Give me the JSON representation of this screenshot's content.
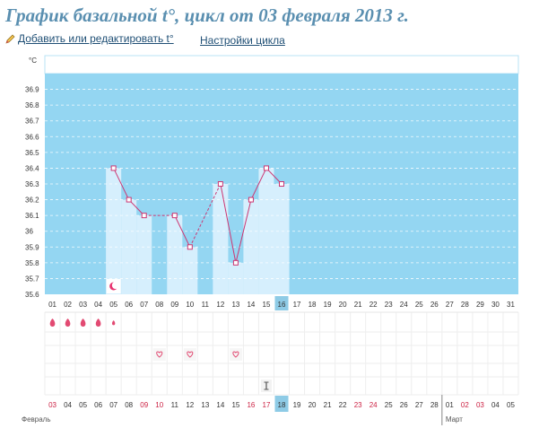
{
  "page": {
    "title": "График базальной t°, цикл от 03 февраля 2013 г.",
    "links": {
      "edit_label": "Добавить или редактировать t°",
      "settings_label": "Настройки цикла"
    }
  },
  "colors": {
    "plot_bg": "#94d6f2",
    "bar_fill": "#d6effd",
    "line": "#cd3672",
    "grid_light": "#eeeeee",
    "red_text": "#cc2244",
    "highlight": "#8ecbe6"
  },
  "icons": {
    "pencil": "pencil-icon",
    "moon": "moon-icon",
    "drop": "drop-icon",
    "heart": "heart-icon",
    "test": "test-icon"
  },
  "chart_data": {
    "type": "line",
    "unit_label": "°C",
    "y_ticks": [
      "35.6",
      "35.7",
      "35.8",
      "35.9",
      "36",
      "36.1",
      "36.2",
      "36.3",
      "36.4",
      "36.5",
      "36.6",
      "36.7",
      "36.8",
      "36.9"
    ],
    "ylim": [
      35.6,
      37.0
    ],
    "cycle_days": [
      "01",
      "02",
      "03",
      "04",
      "05",
      "06",
      "07",
      "08",
      "09",
      "10",
      "11",
      "12",
      "13",
      "14",
      "15",
      "16",
      "17",
      "18",
      "19",
      "20",
      "21",
      "22",
      "23",
      "24",
      "25",
      "26",
      "27",
      "28",
      "29",
      "30",
      "31"
    ],
    "current_day": 16,
    "points": [
      {
        "day": 5,
        "temp": 36.4
      },
      {
        "day": 6,
        "temp": 36.2
      },
      {
        "day": 7,
        "temp": 36.1
      },
      {
        "day": 9,
        "temp": 36.1
      },
      {
        "day": 10,
        "temp": 35.9
      },
      {
        "day": 12,
        "temp": 36.3
      },
      {
        "day": 13,
        "temp": 35.8
      },
      {
        "day": 14,
        "temp": 36.2
      },
      {
        "day": 15,
        "temp": 36.4
      },
      {
        "day": 16,
        "temp": 36.3
      }
    ],
    "gaps": [
      [
        7,
        9
      ],
      [
        10,
        12
      ]
    ],
    "moon_day": 5,
    "drops": [
      {
        "day": 1,
        "size": 1
      },
      {
        "day": 2,
        "size": 1
      },
      {
        "day": 3,
        "size": 1
      },
      {
        "day": 4,
        "size": 1
      },
      {
        "day": 5,
        "size": 0.6
      }
    ],
    "heart_days": [
      8,
      10,
      13
    ],
    "test_day": 15,
    "dates": [
      "03",
      "04",
      "05",
      "06",
      "07",
      "08",
      "09",
      "10",
      "11",
      "12",
      "13",
      "14",
      "15",
      "16",
      "17",
      "18",
      "19",
      "20",
      "21",
      "22",
      "23",
      "24",
      "25",
      "26",
      "27",
      "28",
      "01",
      "02",
      "03",
      "04",
      "05"
    ],
    "red_date_indices": [
      0,
      6,
      7,
      13,
      14,
      20,
      21,
      27,
      28
    ],
    "highlight_date_index": 15,
    "month_labels": [
      {
        "label": "Февраль",
        "index": 0
      },
      {
        "label": "Март",
        "index": 26
      }
    ]
  }
}
